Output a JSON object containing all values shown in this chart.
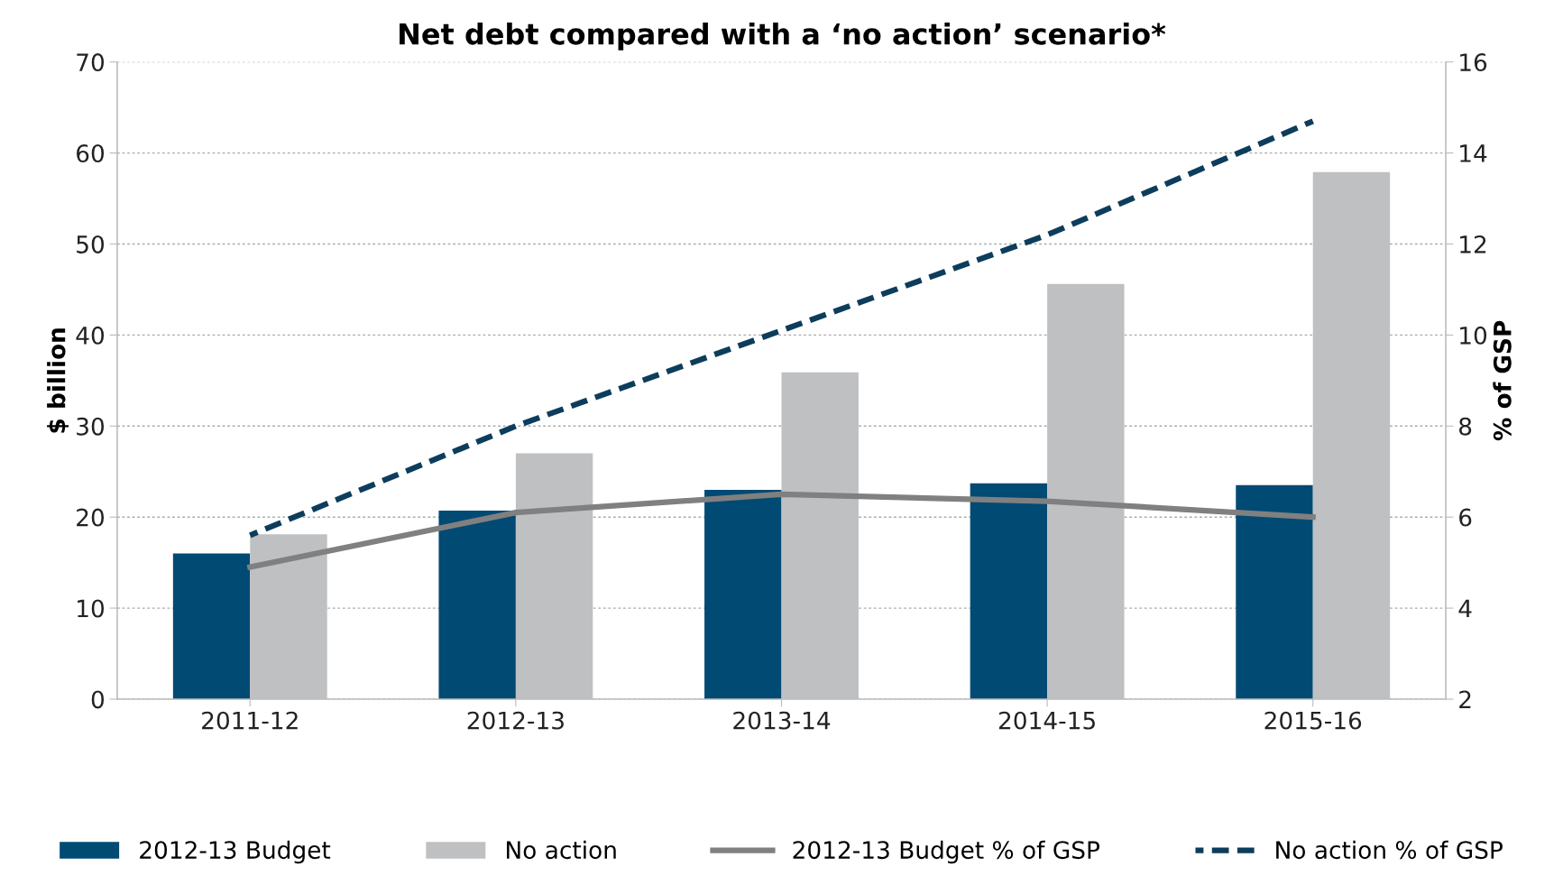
{
  "chart_data": {
    "type": "bar",
    "title": "Net debt compared with a ‘no action’ scenario*",
    "ylabel": "$ billion",
    "y2label": "% of GSP",
    "categories": [
      "2011-12",
      "2012-13",
      "2013-14",
      "2014-15",
      "2015-16"
    ],
    "series": [
      {
        "name": "2012-13 Budget",
        "color": "#004a73",
        "values": [
          16.0,
          20.7,
          23.0,
          23.7,
          23.5
        ]
      },
      {
        "name": "No action",
        "color": "#bfc0c2",
        "values": [
          18.1,
          27.0,
          35.9,
          45.6,
          57.9
        ]
      },
      {
        "name": "2012-13 Budget % of GSP",
        "type": "line",
        "axis": "y2",
        "color": "#808080",
        "line_style": "solid",
        "values": [
          4.9,
          6.1,
          6.5,
          6.35,
          6.0
        ]
      },
      {
        "name": "No action % of GSP",
        "type": "line",
        "axis": "y2",
        "color": "#0d3d5c",
        "line_style": "dashed",
        "values": [
          5.6,
          8.0,
          10.1,
          12.2,
          14.7
        ]
      }
    ],
    "ylim": [
      0,
      70
    ],
    "yticks": [
      0,
      10,
      20,
      30,
      40,
      50,
      60,
      70
    ],
    "y2lim": [
      2,
      16
    ],
    "y2ticks": [
      2,
      4,
      6,
      8,
      10,
      12,
      14,
      16
    ],
    "grid": "y",
    "legend": "bottom"
  }
}
